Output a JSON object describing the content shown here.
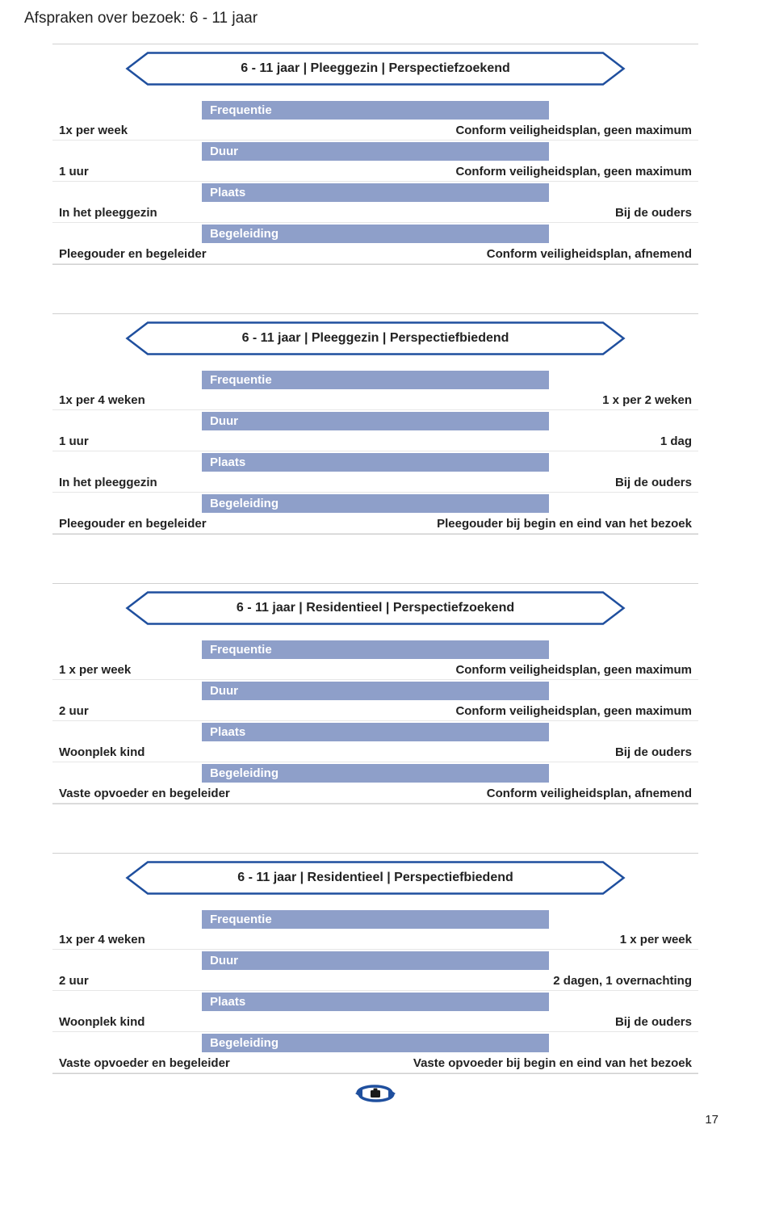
{
  "page_title": "Afspraken over bezoek: 6 - 11 jaar",
  "page_number": "17",
  "colors": {
    "header_bar": "#8e9fc9",
    "arrow_stroke": "#1f4f9e",
    "text": "#222222"
  },
  "sections": [
    {
      "banner": "6 - 11 jaar | Pleeggezin | Perspectiefzoekend",
      "rows": [
        {
          "header": "Frequentie",
          "left": "1x per week",
          "right": "Conform veiligheidsplan, geen maximum"
        },
        {
          "header": "Duur",
          "left": "1 uur",
          "right": "Conform veiligheidsplan, geen maximum"
        },
        {
          "header": "Plaats",
          "left": "In het pleeggezin",
          "right": "Bij de ouders"
        },
        {
          "header": "Begeleiding",
          "left": "Pleegouder en begeleider",
          "right": "Conform veiligheidsplan, afnemend"
        }
      ]
    },
    {
      "banner": "6 - 11 jaar | Pleeggezin | Perspectiefbiedend",
      "rows": [
        {
          "header": "Frequentie",
          "left": "1x per 4 weken",
          "right": "1 x per 2 weken"
        },
        {
          "header": "Duur",
          "left": "1 uur",
          "right": "1 dag"
        },
        {
          "header": "Plaats",
          "left": "In het pleeggezin",
          "right": "Bij de ouders"
        },
        {
          "header": "Begeleiding",
          "left": "Pleegouder en begeleider",
          "right": "Pleegouder bij begin en eind van het bezoek"
        }
      ]
    },
    {
      "banner": "6 - 11 jaar | Residentieel | Perspectiefzoekend",
      "rows": [
        {
          "header": "Frequentie",
          "left": "1 x per week",
          "right": "Conform veiligheidsplan, geen maximum"
        },
        {
          "header": "Duur",
          "left": "2 uur",
          "right": "Conform veiligheidsplan, geen maximum"
        },
        {
          "header": "Plaats",
          "left": "Woonplek kind",
          "right": "Bij de ouders"
        },
        {
          "header": "Begeleiding",
          "left": "Vaste opvoeder en begeleider",
          "right": "Conform veiligheidsplan, afnemend"
        }
      ]
    },
    {
      "banner": "6 - 11 jaar | Residentieel | Perspectiefbiedend",
      "rows": [
        {
          "header": "Frequentie",
          "left": "1x per 4 weken",
          "right": "1 x per week"
        },
        {
          "header": "Duur",
          "left": "2 uur",
          "right": "2 dagen, 1 overnachting"
        },
        {
          "header": "Plaats",
          "left": "Woonplek kind",
          "right": "Bij de ouders"
        },
        {
          "header": "Begeleiding",
          "left": "Vaste opvoeder en begeleider",
          "right": "Vaste opvoeder bij begin en eind van het bezoek"
        }
      ]
    }
  ]
}
